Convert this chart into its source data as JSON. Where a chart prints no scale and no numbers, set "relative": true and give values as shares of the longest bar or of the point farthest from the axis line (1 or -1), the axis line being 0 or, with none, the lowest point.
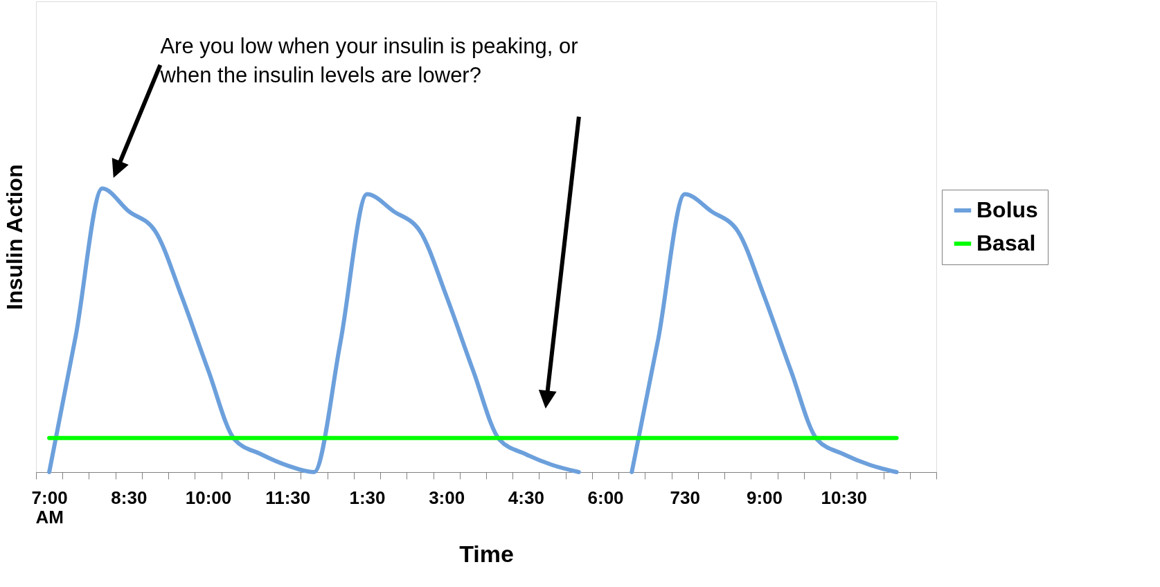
{
  "chart_data": {
    "type": "line",
    "relative": true,
    "xlabel": "Time",
    "ylabel": "Insulin Action",
    "categories": [
      "7:00 AM",
      null,
      null,
      "8:30",
      null,
      null,
      "10:00",
      null,
      null,
      "11:30",
      null,
      null,
      "1:30",
      null,
      null,
      "3:00",
      null,
      null,
      "4:30",
      null,
      null,
      "6:00",
      null,
      null,
      "730",
      null,
      null,
      "9:00",
      null,
      null,
      "10:30",
      null,
      null,
      null
    ],
    "series": [
      {
        "name": "Bolus",
        "color": "#6ca0dc",
        "values": [
          0,
          0.48,
          1,
          0.92,
          0.85,
          0.62,
          0.36,
          0.115,
          0.063,
          0.023,
          0,
          0.46,
          0.98,
          0.92,
          0.85,
          0.62,
          0.36,
          0.115,
          0.063,
          0.025,
          0,
          null,
          0,
          0.47,
          0.98,
          0.92,
          0.85,
          0.62,
          0.36,
          0.115,
          0.063,
          0.025,
          0,
          null
        ]
      },
      {
        "name": "Basal",
        "color": "#00ff00",
        "values": [
          0.12,
          0.12,
          0.12,
          0.12,
          0.12,
          0.12,
          0.12,
          0.12,
          0.12,
          0.12,
          0.12,
          0.12,
          0.12,
          0.12,
          0.12,
          0.12,
          0.12,
          0.12,
          0.12,
          0.12,
          0.12,
          0.12,
          0.12,
          0.12,
          0.12,
          0.12,
          0.12,
          0.12,
          0.12,
          0.12,
          0.12,
          0.12,
          0.12,
          null
        ]
      }
    ],
    "annotations": [
      "Are you low when your insulin is peaking, or\nwhen the insulin levels are lower?"
    ],
    "legend": "right",
    "grid": false,
    "marker": "none",
    "line_style": "solid"
  }
}
